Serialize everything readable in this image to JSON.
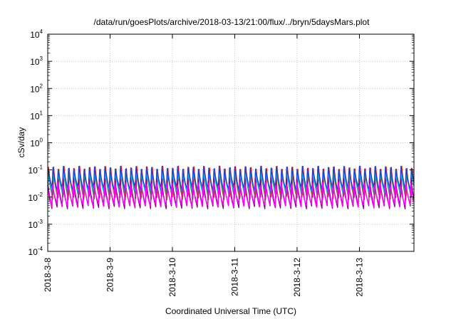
{
  "chart_data": {
    "type": "line",
    "title": "/data/run/goesPlots/archive/2018-03-13/21:00/flux/../bryn/5daysMars.plot",
    "xlabel": "Coordinated Universal Time (UTC)",
    "ylabel": "cSv/day",
    "yscale": "log",
    "ylim": [
      0.0001,
      10000
    ],
    "y_ticks": [
      {
        "base": "10",
        "exp": "-4",
        "value": 0.0001
      },
      {
        "base": "10",
        "exp": "-3",
        "value": 0.001
      },
      {
        "base": "10",
        "exp": "-2",
        "value": 0.01
      },
      {
        "base": "10",
        "exp": "-1",
        "value": 0.1
      },
      {
        "base": "10",
        "exp": "0",
        "value": 1
      },
      {
        "base": "10",
        "exp": "1",
        "value": 10
      },
      {
        "base": "10",
        "exp": "2",
        "value": 100
      },
      {
        "base": "10",
        "exp": "3",
        "value": 1000
      },
      {
        "base": "10",
        "exp": "4",
        "value": 10000
      }
    ],
    "x_ticks": [
      "2018-3-8",
      "2018-3-9",
      "2018-3-10",
      "2018-3-11",
      "2018-3-12",
      "2018-3-13"
    ],
    "xlim": [
      "2018-03-08 00:00",
      "2018-03-13 21:00"
    ],
    "grid": true,
    "legend": "none",
    "period_hours": 2,
    "series": [
      {
        "color": "#ff0000",
        "peak": 0.12,
        "trough": 0.011
      },
      {
        "color": "#a0522d",
        "peak": 0.11,
        "trough": 0.009
      },
      {
        "color": "#2e8b57",
        "peak": 0.1,
        "trough": 0.012
      },
      {
        "color": "#00bfff",
        "peak": 0.09,
        "trough": 0.015
      },
      {
        "color": "#1e40d0",
        "peak": 0.13,
        "trough": 0.02
      },
      {
        "color": "#8b008b",
        "peak": 0.045,
        "trough": 0.0042
      },
      {
        "color": "#ff00ff",
        "peak": 0.035,
        "trough": 0.0048
      }
    ]
  }
}
